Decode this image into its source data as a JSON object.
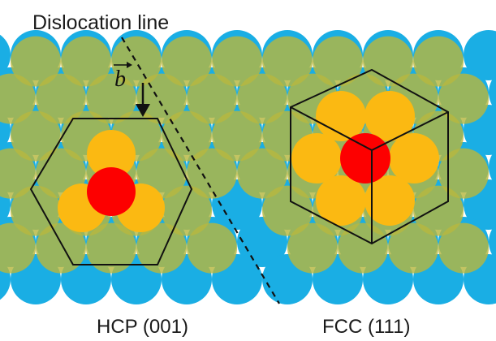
{
  "labels": {
    "dislocation_line": "Dislocation line",
    "burgers_vector": "b",
    "hcp": "HCP (001)",
    "fcc": "FCC (111)"
  },
  "colors": {
    "background": "#ffffff",
    "bottom_layer_atoms": "#1aaee4",
    "middle_layer_atoms": "#b6b740",
    "top_layer_atoms": "#fbb912",
    "center_atom": "#fd0000",
    "outline": "#111111"
  }
}
